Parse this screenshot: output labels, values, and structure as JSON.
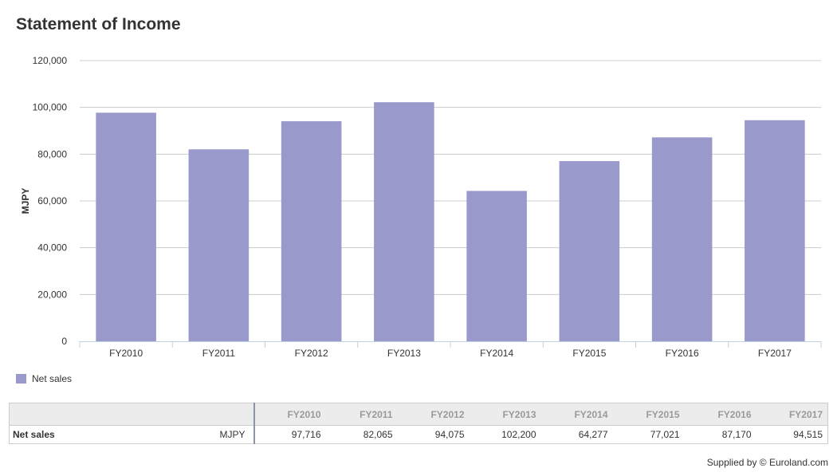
{
  "header": {
    "title": "Statement of Income"
  },
  "chart_data": {
    "type": "bar",
    "categories": [
      "FY2010",
      "FY2011",
      "FY2012",
      "FY2013",
      "FY2014",
      "FY2015",
      "FY2016",
      "FY2017"
    ],
    "series": [
      {
        "name": "Net sales",
        "values": [
          97716,
          82065,
          94075,
          102200,
          64277,
          77021,
          87170,
          94515
        ],
        "color": "#9999cc"
      }
    ],
    "ylabel": "MJPY",
    "ylim": [
      0,
      120000
    ],
    "yticks": [
      0,
      20000,
      40000,
      60000,
      80000,
      100000,
      120000
    ],
    "ytick_labels": [
      "0",
      "20,000",
      "40,000",
      "60,000",
      "80,000",
      "100,000",
      "120,000"
    ],
    "grid": true,
    "legend_position": "bottom-left"
  },
  "table": {
    "columns": [
      "FY2010",
      "FY2011",
      "FY2012",
      "FY2013",
      "FY2014",
      "FY2015",
      "FY2016",
      "FY2017"
    ],
    "rows": [
      {
        "label": "Net sales",
        "unit": "MJPY",
        "values": [
          "97,716",
          "82,065",
          "94,075",
          "102,200",
          "64,277",
          "77,021",
          "87,170",
          "94,515"
        ]
      }
    ]
  },
  "footer": {
    "supplied_by": "Supplied by © Euroland.com"
  }
}
